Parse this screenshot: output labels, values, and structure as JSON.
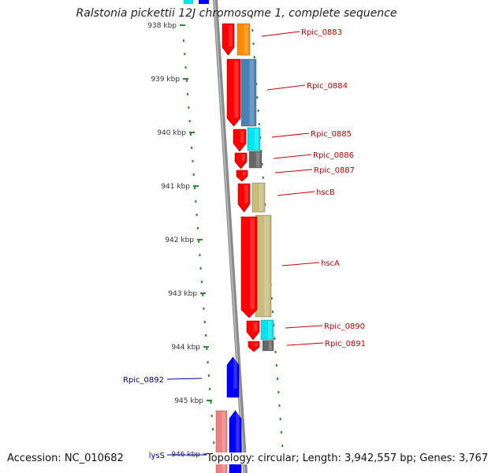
{
  "title": "Ralstonia pickettii 12J chromosome 1, complete sequence",
  "accession_label": "Accession: NC_010682",
  "stats_label": "Topology: circular; Length: 3,942,557 bp; Genes: 3,767",
  "colors": {
    "forward_cds": "#ff0000",
    "reverse_cds": "#0000ff",
    "backbone": "#888888",
    "tick": "#2e8b2e",
    "forward_label": "#cc0000",
    "reverse_label": "#0000aa"
  },
  "ruler_ticks": [
    {
      "label": "938 kbp"
    },
    {
      "label": "939 kbp"
    },
    {
      "label": "940 kbp"
    },
    {
      "label": "941 kbp"
    },
    {
      "label": "942 kbp"
    },
    {
      "label": "943 kbp"
    },
    {
      "label": "944 kbp"
    },
    {
      "label": "945 kbp"
    },
    {
      "label": "946 kbp"
    }
  ],
  "genes": [
    {
      "name": "Rpic_0883",
      "strand": "+",
      "cog_color": "#ff8c00"
    },
    {
      "name": "Rpic_0884",
      "strand": "+",
      "cog_color": "#4682b4"
    },
    {
      "name": "Rpic_0885",
      "strand": "+",
      "cog_color": "#00e5ee"
    },
    {
      "name": "Rpic_0886",
      "strand": "+",
      "cog_color": "#666666"
    },
    {
      "name": "Rpic_0887",
      "strand": "+",
      "cog_color": ""
    },
    {
      "name": "hscB",
      "strand": "+",
      "cog_color": "#c8bc7a"
    },
    {
      "name": "hscA",
      "strand": "+",
      "cog_color": "#c8bc7a"
    },
    {
      "name": "Rpic_0890",
      "strand": "+",
      "cog_color": "#00e5ee"
    },
    {
      "name": "Rpic_0891",
      "strand": "+",
      "cog_color": "#666666"
    },
    {
      "name": "Rpic_0892",
      "strand": "-",
      "cog_color": ""
    },
    {
      "name": "lysS",
      "strand": "-",
      "cog_color": "#f08080"
    }
  ]
}
